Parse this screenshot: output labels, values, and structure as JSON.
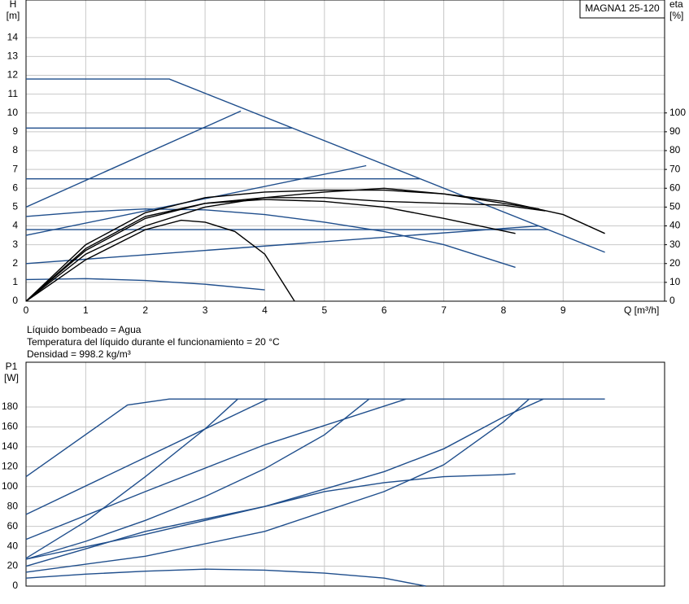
{
  "chart_data": [
    {
      "type": "line",
      "title": "MAGNA1 25-120",
      "y_label": "H",
      "y_unit": "[m]",
      "y2_label": "eta",
      "y2_unit": "[%]",
      "x_label": "Q [m³/h]",
      "xlim": [
        0,
        10.7
      ],
      "xticks": [
        0,
        1,
        2,
        3,
        4,
        5,
        6,
        7,
        8,
        9
      ],
      "ylim": [
        0,
        16
      ],
      "yticks": [
        0,
        1,
        2,
        3,
        4,
        5,
        6,
        7,
        8,
        9,
        10,
        11,
        12,
        13,
        14
      ],
      "y2lim": [
        0,
        160
      ],
      "y2ticks": [
        0,
        10,
        20,
        30,
        40,
        50,
        60,
        70,
        80,
        90,
        100
      ],
      "grid": true,
      "annotations": [
        "Líquido bombeado = Agua",
        "Temperatura del líquido durante el funcionamiento = 20 °C",
        "Densidad = 998.2 kg/m³"
      ],
      "series": [
        {
          "color": "#1f4e8c",
          "x": [
            0,
            2.4,
            9.7
          ],
          "values": [
            11.8,
            11.8,
            2.6
          ]
        },
        {
          "color": "#1f4e8c",
          "x": [
            0,
            4.46
          ],
          "values": [
            9.2,
            9.2
          ]
        },
        {
          "color": "#1f4e8c",
          "x": [
            0,
            6.6
          ],
          "values": [
            6.5,
            6.5
          ]
        },
        {
          "color": "#1f4e8c",
          "x": [
            0,
            8.75
          ],
          "values": [
            3.8,
            3.8
          ]
        },
        {
          "color": "#1f4e8c",
          "x": [
            0,
            3.6
          ],
          "values": [
            5,
            10.1
          ]
        },
        {
          "color": "#1f4e8c",
          "x": [
            0,
            5.7
          ],
          "values": [
            3.5,
            7.2
          ]
        },
        {
          "color": "#1f4e8c",
          "x": [
            0,
            8.6
          ],
          "values": [
            2,
            4
          ]
        },
        {
          "color": "#1f4e8c",
          "x": [
            0,
            1,
            2,
            3,
            4,
            5,
            6,
            7,
            8.2
          ],
          "values": [
            4.5,
            4.75,
            4.9,
            4.85,
            4.6,
            4.2,
            3.7,
            3.0,
            1.8
          ]
        },
        {
          "color": "#1f4e8c",
          "x": [
            0,
            1,
            2,
            3,
            4
          ],
          "values": [
            1.15,
            1.2,
            1.1,
            0.9,
            0.6
          ]
        },
        {
          "color": "#000000",
          "axis": "y2",
          "x": [
            0,
            1,
            2,
            2.6,
            3,
            3.5,
            4,
            4.5
          ],
          "values": [
            0,
            22,
            38,
            43,
            42,
            37,
            25,
            0
          ]
        },
        {
          "color": "#000000",
          "axis": "y2",
          "x": [
            0,
            1,
            2,
            3,
            4,
            5,
            6,
            7,
            8.2
          ],
          "values": [
            0,
            28,
            45,
            52,
            54,
            53,
            50,
            44,
            36
          ]
        },
        {
          "color": "#000000",
          "axis": "y2",
          "x": [
            0,
            1,
            2,
            3,
            4,
            5,
            6,
            7,
            8,
            9,
            9.7
          ],
          "values": [
            0,
            30,
            47,
            55,
            58,
            59,
            59,
            57,
            53,
            46,
            36
          ]
        },
        {
          "color": "#000000",
          "axis": "y2",
          "x": [
            0,
            1,
            2,
            3,
            4,
            5,
            6,
            7,
            8,
            8.7
          ],
          "values": [
            0,
            27,
            44,
            52,
            55,
            55,
            53,
            52,
            51,
            48
          ]
        },
        {
          "color": "#000000",
          "axis": "y2",
          "x": [
            0,
            1,
            2,
            3,
            4,
            5,
            6,
            7,
            8,
            8.6
          ],
          "values": [
            0,
            25,
            40,
            50,
            55,
            58,
            60,
            57,
            52,
            49
          ]
        }
      ]
    },
    {
      "type": "line",
      "y_label": "P1",
      "y_unit": "[W]",
      "xlim": [
        0,
        10.7
      ],
      "ylim": [
        0,
        225
      ],
      "yticks": [
        0,
        20,
        40,
        60,
        80,
        100,
        120,
        140,
        160,
        180
      ],
      "grid": true,
      "series": [
        {
          "color": "#1f4e8c",
          "x": [
            0,
            1.7,
            2.4,
            9.7
          ],
          "values": [
            110,
            182,
            188,
            188
          ]
        },
        {
          "color": "#1f4e8c",
          "x": [
            0,
            4.05
          ],
          "values": [
            72,
            188
          ]
        },
        {
          "color": "#1f4e8c",
          "x": [
            0,
            2,
            4,
            6.37
          ],
          "values": [
            47,
            95,
            142,
            188
          ]
        },
        {
          "color": "#1f4e8c",
          "x": [
            0,
            1,
            2,
            3,
            3.55
          ],
          "values": [
            28,
            65,
            110,
            158,
            188
          ]
        },
        {
          "color": "#1f4e8c",
          "x": [
            0,
            1,
            2,
            3,
            4,
            5,
            5.75
          ],
          "values": [
            27,
            45,
            66,
            90,
            118,
            152,
            188
          ]
        },
        {
          "color": "#1f4e8c",
          "x": [
            0,
            2,
            4,
            6,
            7,
            8,
            8.43
          ],
          "values": [
            14,
            30,
            55,
            95,
            122,
            165,
            188
          ]
        },
        {
          "color": "#1f4e8c",
          "x": [
            0,
            2,
            4,
            6,
            7,
            8,
            8.67
          ],
          "values": [
            27,
            52,
            80,
            115,
            138,
            170,
            188
          ]
        },
        {
          "color": "#1f4e8c",
          "x": [
            0,
            2,
            4,
            5,
            6,
            7,
            8,
            8.2
          ],
          "values": [
            20,
            55,
            80,
            95,
            104,
            110,
            112,
            113
          ]
        },
        {
          "color": "#1f4e8c",
          "x": [
            0,
            1,
            2,
            3,
            4,
            5,
            6,
            6.7
          ],
          "values": [
            8,
            12,
            15,
            17,
            16,
            13,
            8,
            0
          ]
        }
      ]
    }
  ]
}
